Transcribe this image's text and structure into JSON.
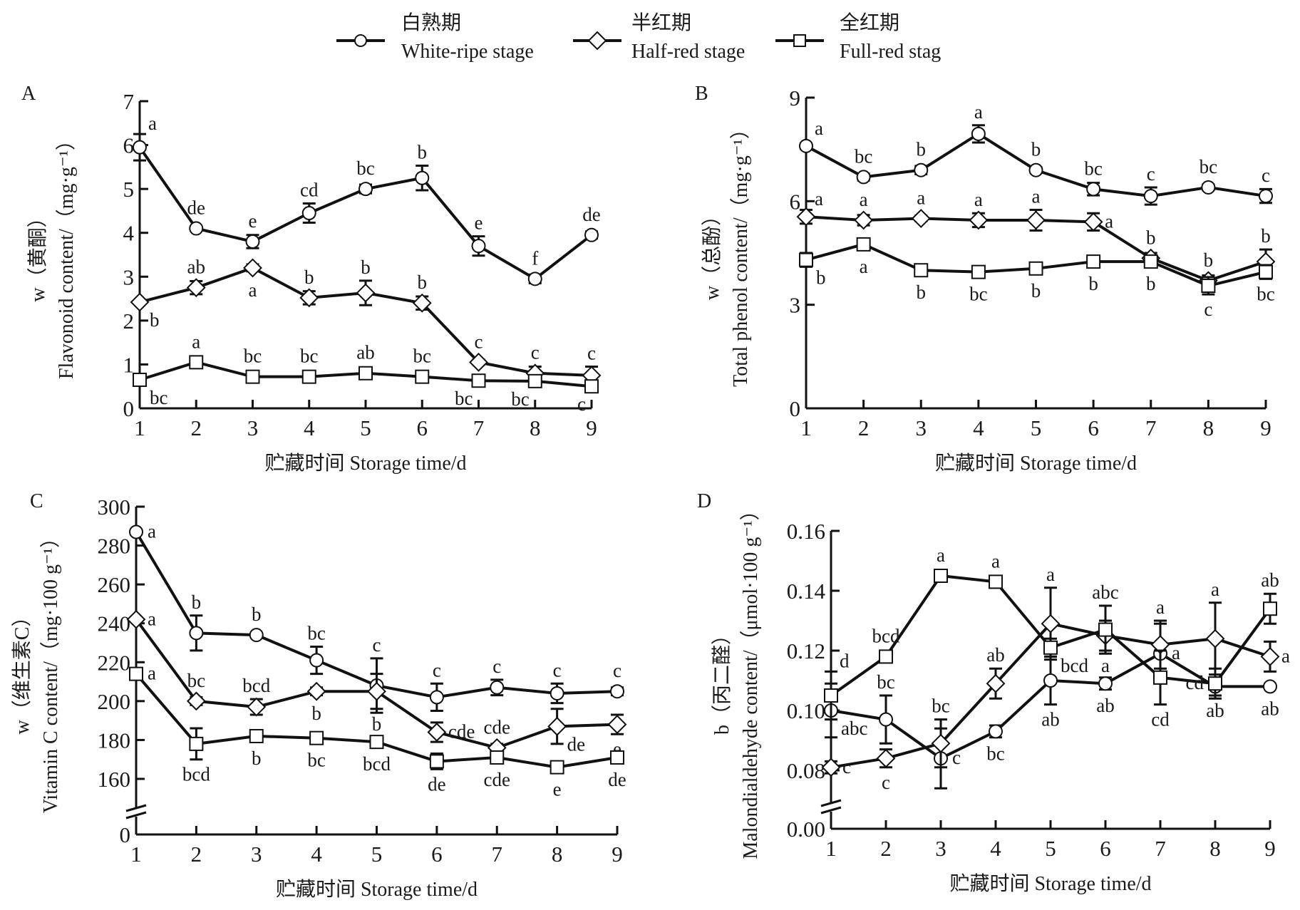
{
  "legend": [
    {
      "zh": "白熟期",
      "en": "White-ripe stage",
      "marker": "circle"
    },
    {
      "zh": "半红期",
      "en": "Half-red stage",
      "marker": "diamond"
    },
    {
      "zh": "全红期",
      "en": "Full-red stag",
      "marker": "square"
    }
  ],
  "chart_data": [
    {
      "panel": "A",
      "type": "line",
      "xlabel": "贮藏时间 Storage time/d",
      "ylabel_zh": "w（黄酮）",
      "ylabel_en": "Flavonoid content/（mg·g⁻¹）",
      "x": [
        1,
        2,
        3,
        4,
        5,
        6,
        7,
        8,
        9
      ],
      "ylim": [
        0,
        7
      ],
      "yticks": [
        0,
        1,
        2,
        3,
        4,
        5,
        6,
        7
      ],
      "ytick_labels": [
        "0",
        "1",
        "2",
        "3",
        "4",
        "5",
        "6",
        "7"
      ],
      "y_break": false,
      "series": [
        {
          "name": "White-ripe stage",
          "marker": "circle",
          "values": [
            5.95,
            4.1,
            3.8,
            4.45,
            5.0,
            5.25,
            3.7,
            2.95,
            3.95
          ],
          "errors": [
            0.3,
            0.05,
            0.15,
            0.22,
            0.1,
            0.28,
            0.22,
            0.1,
            0.08
          ],
          "labels": [
            "a",
            "de",
            "e",
            "cd",
            "bc",
            "b",
            "e",
            "f",
            "de"
          ],
          "label_pos": [
            "above-right",
            "above",
            "above",
            "above",
            "above",
            "above",
            "above",
            "above",
            "above"
          ]
        },
        {
          "name": "Half-red stage",
          "marker": "diamond",
          "values": [
            2.42,
            2.75,
            3.2,
            2.52,
            2.63,
            2.4,
            1.05,
            0.8,
            0.75
          ],
          "errors": [
            0.04,
            0.15,
            0.08,
            0.15,
            0.28,
            0.15,
            0.06,
            0.15,
            0.2
          ],
          "labels": [
            "b",
            "ab",
            "a",
            "b",
            "b",
            "b",
            "c",
            "c",
            "c"
          ],
          "label_pos": [
            "below-right",
            "above",
            "below",
            "above",
            "above",
            "above",
            "above",
            "above",
            "above"
          ]
        },
        {
          "name": "Full-red stage",
          "marker": "square",
          "values": [
            0.65,
            1.05,
            0.72,
            0.72,
            0.8,
            0.72,
            0.63,
            0.62,
            0.5
          ],
          "errors": [
            0.08,
            0.05,
            0.05,
            0.04,
            0.04,
            0.1,
            0.05,
            0.05,
            0.06
          ],
          "labels": [
            "bc",
            "a",
            "bc",
            "bc",
            "ab",
            "bc",
            "bc",
            "bc",
            "c"
          ],
          "label_pos": [
            "below-right",
            "above",
            "above",
            "above",
            "above",
            "above",
            "below-left",
            "below-left",
            "below-left"
          ]
        }
      ]
    },
    {
      "panel": "B",
      "type": "line",
      "xlabel": "贮藏时间 Storage time/d",
      "ylabel_zh": "w（总酚）",
      "ylabel_en": "Total phenol content/（mg·g⁻¹）",
      "x": [
        1,
        2,
        3,
        4,
        5,
        6,
        7,
        8,
        9
      ],
      "ylim": [
        0,
        9
      ],
      "yticks": [
        0,
        3,
        6,
        9
      ],
      "ytick_labels": [
        "0",
        "3",
        "6",
        "9"
      ],
      "y_break": false,
      "series": [
        {
          "name": "White-ripe stage",
          "marker": "circle",
          "values": [
            7.6,
            6.7,
            6.9,
            7.95,
            6.9,
            6.35,
            6.15,
            6.4,
            6.15
          ],
          "errors": [
            0.08,
            0.1,
            0.12,
            0.25,
            0.08,
            0.18,
            0.25,
            0.08,
            0.2
          ],
          "labels": [
            "a",
            "bc",
            "b",
            "a",
            "b",
            "bc",
            "c",
            "bc",
            "c"
          ],
          "label_pos": [
            "above-right",
            "above",
            "above",
            "above",
            "above",
            "above",
            "above",
            "above",
            "above"
          ]
        },
        {
          "name": "Half-red stage",
          "marker": "diamond",
          "values": [
            5.55,
            5.45,
            5.5,
            5.45,
            5.45,
            5.4,
            4.35,
            3.7,
            4.25
          ],
          "errors": [
            0.2,
            0.15,
            0.08,
            0.2,
            0.3,
            0.25,
            0.15,
            0.15,
            0.35
          ],
          "labels": [
            "a",
            "a",
            "a",
            "a",
            "a",
            "a",
            "b",
            "b",
            "b"
          ],
          "label_pos": [
            "above-right",
            "above",
            "above",
            "above",
            "above",
            "right",
            "above",
            "above",
            "above"
          ]
        },
        {
          "name": "Full-red stage",
          "marker": "square",
          "values": [
            4.3,
            4.75,
            4.0,
            3.95,
            4.05,
            4.25,
            4.25,
            3.55,
            3.95
          ],
          "errors": [
            0.2,
            0.15,
            0.05,
            0.08,
            0.05,
            0.08,
            0.15,
            0.25,
            0.2
          ],
          "labels": [
            "b",
            "a",
            "b",
            "bc",
            "b",
            "b",
            "b",
            "c",
            "bc"
          ],
          "label_pos": [
            "below-right",
            "below",
            "below",
            "below",
            "below",
            "below",
            "below",
            "below",
            "below"
          ]
        }
      ]
    },
    {
      "panel": "C",
      "type": "line",
      "xlabel": "贮藏时间 Storage time/d",
      "ylabel_zh": "w（维生素C）",
      "ylabel_en": "Vitamin C content/（mg·100 g⁻¹）",
      "x": [
        1,
        2,
        3,
        4,
        5,
        6,
        7,
        8,
        9
      ],
      "ylim": [
        0,
        300
      ],
      "yticks": [
        0,
        160,
        180,
        200,
        220,
        240,
        260,
        280,
        300
      ],
      "ytick_labels": [
        "0",
        "160",
        "180",
        "200",
        "220",
        "240",
        "260",
        "280",
        "300"
      ],
      "y_break": true,
      "series": [
        {
          "name": "White-ripe stage",
          "marker": "circle",
          "values": [
            287,
            235,
            234,
            221,
            208,
            202,
            207,
            204,
            205
          ],
          "errors": [
            0,
            9,
            1,
            7,
            14,
            7,
            4,
            5,
            2
          ],
          "labels": [
            "a",
            "b",
            "b",
            "bc",
            "c",
            "c",
            "c",
            "c",
            "c"
          ],
          "label_pos": [
            "right",
            "above",
            "above",
            "above",
            "above",
            "above",
            "above",
            "above",
            "above"
          ]
        },
        {
          "name": "Half-red stage",
          "marker": "diamond",
          "values": [
            242,
            200,
            197,
            205,
            205,
            184,
            176,
            187,
            188
          ],
          "errors": [
            0,
            2,
            4,
            2,
            9,
            5,
            2,
            9,
            5
          ],
          "labels": [
            "a",
            "bc",
            "bcd",
            "b",
            "b",
            "cde",
            "cde",
            "de",
            "e"
          ],
          "label_pos": [
            "right",
            "above",
            "above",
            "below",
            "below",
            "right",
            "above",
            "below-right",
            "below"
          ]
        },
        {
          "name": "Full-red stage",
          "marker": "square",
          "values": [
            214,
            178,
            182,
            181,
            179,
            169,
            171,
            166,
            171
          ],
          "errors": [
            2,
            8,
            2,
            1,
            2,
            4,
            3,
            1,
            1
          ],
          "labels": [
            "a",
            "bcd",
            "b",
            "bc",
            "bcd",
            "de",
            "cde",
            "e",
            "de"
          ],
          "label_pos": [
            "right",
            "below",
            "below",
            "below",
            "below",
            "below",
            "below",
            "below",
            "below"
          ]
        }
      ]
    },
    {
      "panel": "D",
      "type": "line",
      "xlabel": "贮藏时间 Storage time/d",
      "ylabel_zh": "b（丙二醛）",
      "ylabel_en": "Malondialdehyde content/（μmol·100 g⁻¹）",
      "x": [
        1,
        2,
        3,
        4,
        5,
        6,
        7,
        8,
        9
      ],
      "ylim": [
        0,
        0.16
      ],
      "yticks": [
        0,
        0.08,
        0.1,
        0.12,
        0.14,
        0.16
      ],
      "ytick_labels": [
        "0.00",
        "0.08",
        "0.10",
        "0.12",
        "0.14",
        "0.16"
      ],
      "y_break": true,
      "series": [
        {
          "name": "White-ripe stage",
          "marker": "circle",
          "values": [
            0.1,
            0.097,
            0.084,
            0.093,
            0.11,
            0.109,
            0.119,
            0.108,
            0.108
          ],
          "errors": [
            0.009,
            0.008,
            0.01,
            0.002,
            0.008,
            0.002,
            0.01,
            0.003,
            0.0005
          ],
          "labels": [
            "abc",
            "bc",
            "c",
            "bc",
            "ab",
            "ab",
            "a",
            "ab",
            "ab"
          ],
          "label_pos": [
            "below-right",
            "above",
            "right",
            "below",
            "below",
            "below",
            "right",
            "below",
            "below"
          ]
        },
        {
          "name": "Half-red stage",
          "marker": "diamond",
          "values": [
            0.081,
            0.084,
            0.089,
            0.109,
            0.129,
            0.125,
            0.122,
            0.124,
            0.118
          ],
          "errors": [
            0.002,
            0.003,
            0.008,
            0.005,
            0.012,
            0.005,
            0.008,
            0.012,
            0.005
          ],
          "labels": [
            "c",
            "c",
            "bc",
            "ab",
            "a",
            "a",
            "a",
            "a",
            "a"
          ],
          "label_pos": [
            "right",
            "below",
            "above",
            "above",
            "above",
            "below",
            "above",
            "above",
            "right"
          ]
        },
        {
          "name": "Full-red stage",
          "marker": "square",
          "values": [
            0.105,
            0.118,
            0.145,
            0.143,
            0.121,
            0.127,
            0.111,
            0.109,
            0.134
          ],
          "errors": [
            0.008,
            0.002,
            0.001,
            0.002,
            0.003,
            0.008,
            0.009,
            0.005,
            0.005
          ],
          "labels": [
            "d",
            "bcd",
            "a",
            "a",
            "bcd",
            "abc",
            "cd",
            "cd",
            "ab"
          ],
          "label_pos": [
            "above-right",
            "above",
            "above",
            "above",
            "below-right",
            "above",
            "below",
            "left",
            "above"
          ]
        }
      ]
    }
  ]
}
